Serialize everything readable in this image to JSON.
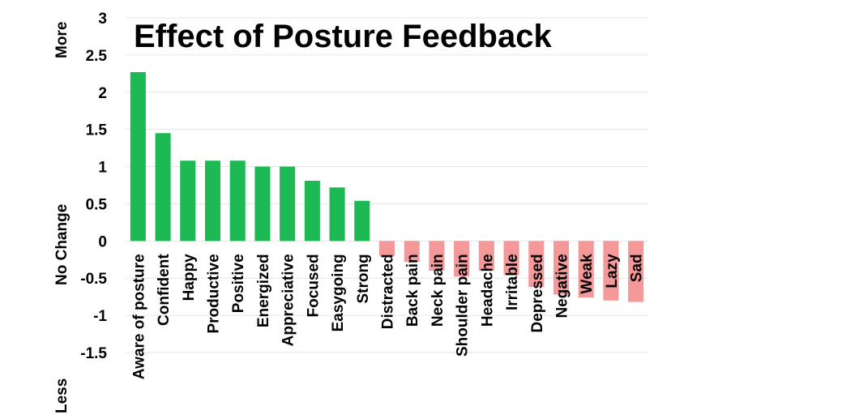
{
  "chart_data": {
    "type": "bar",
    "title": "Effect of Posture Feedback",
    "ylabel_top": "More",
    "ylabel_middle": "No Change",
    "ylabel_bottom": "Less",
    "ylim": [
      -1.5,
      3
    ],
    "yticks": [
      "3",
      "2.5",
      "2",
      "1.5",
      "1",
      "0.5",
      "0",
      "-0.5",
      "-1",
      "-1.5"
    ],
    "grid": true,
    "colors": {
      "positive": "#1db954",
      "negative": "#f4989a"
    },
    "categories": [
      "Aware of posture",
      "Confident",
      "Happy",
      "Productive",
      "Positive",
      "Energized",
      "Appreciative",
      "Focused",
      "Easygoing",
      "Strong",
      "Distracted",
      "Back pain",
      "Neck pain",
      "Shoulder pain",
      "Headache",
      "Irritable",
      "Depressed",
      "Negative",
      "Weak",
      "Lazy",
      "Sad"
    ],
    "values": [
      2.27,
      1.45,
      1.08,
      1.08,
      1.08,
      1.0,
      1.0,
      0.81,
      0.72,
      0.54,
      -0.2,
      -0.28,
      -0.4,
      -0.48,
      -0.4,
      -0.46,
      -0.62,
      -0.72,
      -0.76,
      -0.8,
      -0.82
    ]
  }
}
